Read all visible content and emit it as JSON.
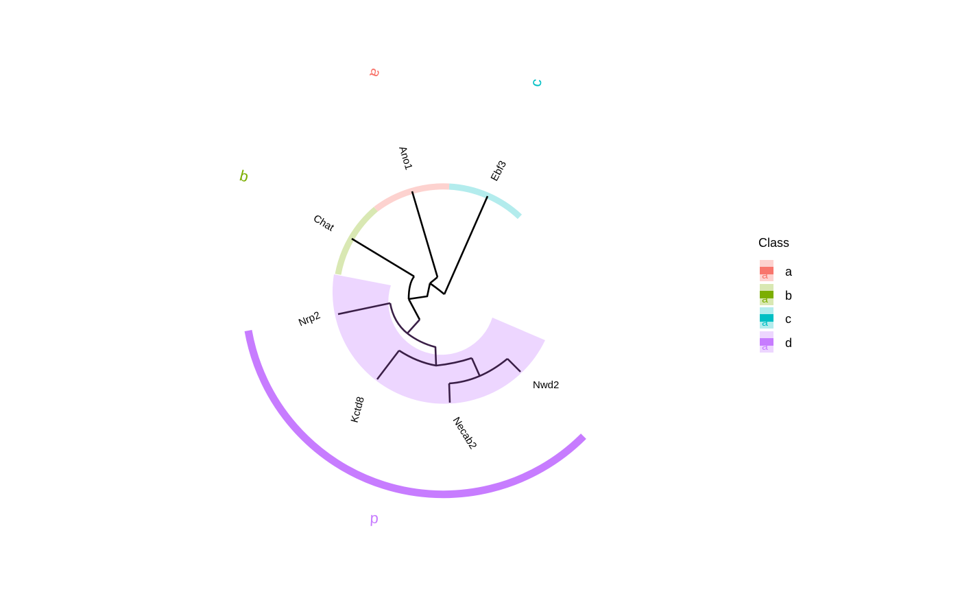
{
  "classes": {
    "a": {
      "solid": "#F8766D",
      "light": "#FDD2CF"
    },
    "b": {
      "solid": "#7CAE00",
      "light": "#D9E8B3"
    },
    "c": {
      "solid": "#00BFC4",
      "light": "#B3ECED"
    },
    "d": {
      "solid": "#C77CFF",
      "light": "#EDD6FF"
    }
  },
  "tips": [
    {
      "id": "ebf3",
      "label": "Ebf3",
      "cls": "c"
    },
    {
      "id": "ano1",
      "label": "Ano1",
      "cls": "a"
    },
    {
      "id": "chat",
      "label": "Chat",
      "cls": "b"
    },
    {
      "id": "nrp2",
      "label": "Nrp2",
      "cls": "d"
    },
    {
      "id": "kctd8",
      "label": "Kctd8",
      "cls": "d"
    },
    {
      "id": "necab2",
      "label": "Necab2",
      "cls": "d"
    },
    {
      "id": "nwd2",
      "label": "Nwd2",
      "cls": "d"
    }
  ],
  "group_labels": [
    {
      "id": "a",
      "text": "a"
    },
    {
      "id": "b",
      "text": "b"
    },
    {
      "id": "c",
      "text": "c"
    },
    {
      "id": "d",
      "text": "d"
    }
  ],
  "legend": {
    "title": "Class",
    "items": [
      {
        "id": "a",
        "label": "a",
        "key_letter": "a"
      },
      {
        "id": "b",
        "label": "b",
        "key_letter": "a"
      },
      {
        "id": "c",
        "label": "c",
        "key_letter": "a"
      },
      {
        "id": "d",
        "label": "d",
        "key_letter": "a"
      }
    ]
  }
}
